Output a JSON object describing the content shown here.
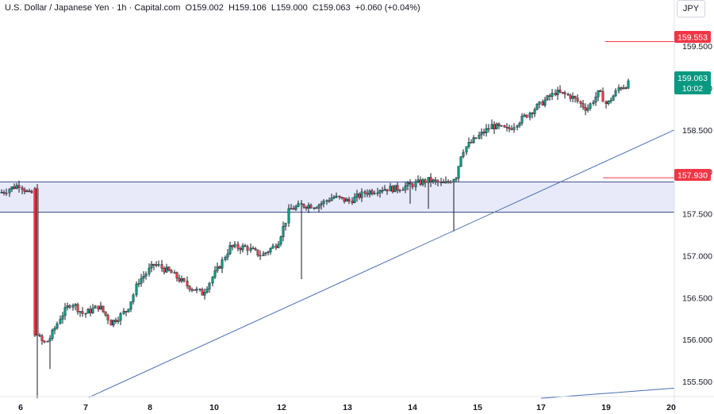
{
  "header": {
    "symbol": "U.S. Dollar / Japanese Yen",
    "interval": "1h",
    "source": "Capital.com",
    "open_label": "O",
    "open": "159.002",
    "high_label": "H",
    "high": "159.106",
    "low_label": "L",
    "low": "159.000",
    "close_label": "C",
    "close": "159.063",
    "change": "+0.060 (+0.04%)"
  },
  "currency": "JPY",
  "colors": {
    "up": "#089981",
    "down": "#f23645",
    "zone_fill": "#e8eaf9",
    "zone_line": "#3d4f8c",
    "trend_line": "#4a6fb5",
    "resistance": "#f23645",
    "price_tag": "#089981"
  },
  "price_tags": {
    "resistance_upper": "159.553",
    "resistance_lower": "157.930",
    "last_price": "159.063",
    "countdown": "10:02"
  },
  "chart_data": {
    "type": "candlestick",
    "x_tick_labels": [
      "6",
      "7",
      "8",
      "10",
      "12",
      "13",
      "14",
      "15",
      "17",
      "19",
      "20"
    ],
    "y_tick_labels": [
      "155.500",
      "156.000",
      "156.500",
      "157.000",
      "157.500",
      "158.000",
      "158.500",
      "159.000",
      "159.500"
    ],
    "ylim": [
      155.32,
      160.05
    ],
    "zone": {
      "low": 157.52,
      "high": 157.88
    },
    "levels": [
      159.553,
      157.93
    ],
    "trend_lines": [
      {
        "from": [
          "7",
          155.31
        ],
        "to": [
          "20",
          158.5
        ]
      },
      {
        "from": [
          "17",
          155.3
        ],
        "to": [
          "20",
          155.42
        ]
      }
    ],
    "candles": []
  }
}
